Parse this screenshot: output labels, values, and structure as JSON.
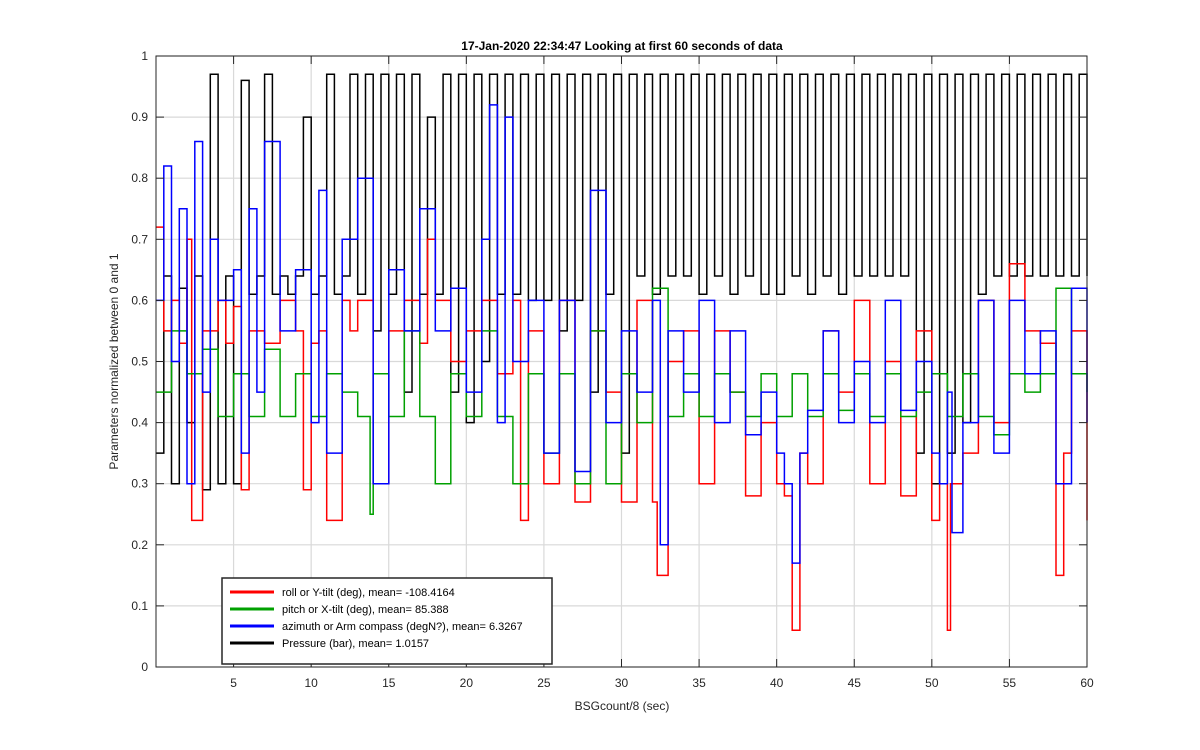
{
  "chart_data": {
    "type": "line",
    "title": "17-Jan-2020 22:34:47 Looking at first 60 seconds of data",
    "xlabel": "BSGcount/8 (sec)",
    "ylabel": "Parameters normalized between 0 and 1",
    "xlim": [
      0,
      60
    ],
    "ylim": [
      0,
      1
    ],
    "xticks": [
      "5",
      "10",
      "15",
      "20",
      "25",
      "30",
      "35",
      "40",
      "45",
      "50",
      "55",
      "60"
    ],
    "yticks": [
      "0",
      "0.1",
      "0.2",
      "0.3",
      "0.4",
      "0.5",
      "0.6",
      "0.7",
      "0.8",
      "0.9",
      "1"
    ],
    "grid": true,
    "legend_position": "bottom-left",
    "series": [
      {
        "name": "roll or Y-tilt (deg), mean= -108.4164",
        "color": "#ff0000",
        "x": [
          0,
          0.5,
          1,
          1.5,
          2,
          2.3,
          3,
          4,
          4.5,
          5,
          5.5,
          6,
          7,
          8,
          9,
          9.5,
          10,
          10.5,
          11,
          12,
          12.5,
          13,
          14,
          15,
          16,
          17,
          17.5,
          18,
          19,
          20,
          21,
          22,
          23,
          23.5,
          24,
          25,
          26,
          27,
          28,
          29,
          30,
          31,
          32,
          32.3,
          33,
          34,
          35,
          36,
          37,
          38,
          39,
          40,
          40.5,
          41,
          41.5,
          42,
          43,
          44,
          45,
          46,
          47,
          48,
          49,
          50,
          50.5,
          51,
          51.2,
          52,
          53,
          54,
          55,
          56,
          57,
          58,
          58.5,
          59,
          60
        ],
        "values": [
          0.72,
          0.55,
          0.6,
          0.53,
          0.7,
          0.24,
          0.55,
          0.6,
          0.53,
          0.59,
          0.29,
          0.55,
          0.53,
          0.6,
          0.55,
          0.29,
          0.53,
          0.55,
          0.24,
          0.6,
          0.55,
          0.6,
          0.3,
          0.55,
          0.6,
          0.53,
          0.7,
          0.6,
          0.5,
          0.55,
          0.6,
          0.48,
          0.6,
          0.24,
          0.55,
          0.3,
          0.6,
          0.27,
          0.55,
          0.45,
          0.27,
          0.6,
          0.27,
          0.15,
          0.5,
          0.55,
          0.3,
          0.55,
          0.45,
          0.28,
          0.4,
          0.3,
          0.28,
          0.06,
          0.35,
          0.3,
          0.55,
          0.45,
          0.6,
          0.3,
          0.5,
          0.28,
          0.55,
          0.24,
          0.3,
          0.06,
          0.3,
          0.35,
          0.6,
          0.4,
          0.66,
          0.55,
          0.53,
          0.15,
          0.35,
          0.55,
          0.24
        ]
      },
      {
        "name": "pitch or X-tilt (deg), mean= 85.388",
        "color": "#00a000",
        "x": [
          0,
          1,
          2,
          3,
          4,
          5,
          6,
          7,
          8,
          9,
          10,
          11,
          12,
          13,
          13.8,
          14,
          15,
          16,
          17,
          18,
          19,
          20,
          21,
          22,
          23,
          24,
          25,
          26,
          27,
          28,
          29,
          30,
          31,
          32,
          33,
          34,
          35,
          36,
          37,
          38,
          39,
          40,
          41,
          42,
          43,
          44,
          45,
          46,
          47,
          48,
          49,
          50,
          51,
          52,
          53,
          54,
          55,
          56,
          57,
          58,
          59,
          60
        ],
        "values": [
          0.45,
          0.55,
          0.48,
          0.52,
          0.41,
          0.48,
          0.41,
          0.52,
          0.41,
          0.48,
          0.41,
          0.48,
          0.45,
          0.41,
          0.25,
          0.48,
          0.41,
          0.55,
          0.41,
          0.3,
          0.48,
          0.41,
          0.55,
          0.41,
          0.3,
          0.48,
          0.35,
          0.48,
          0.3,
          0.55,
          0.3,
          0.48,
          0.4,
          0.62,
          0.41,
          0.48,
          0.41,
          0.48,
          0.45,
          0.41,
          0.48,
          0.41,
          0.48,
          0.41,
          0.48,
          0.42,
          0.48,
          0.41,
          0.48,
          0.41,
          0.45,
          0.48,
          0.41,
          0.48,
          0.41,
          0.38,
          0.48,
          0.45,
          0.48,
          0.62,
          0.48,
          0.45
        ]
      },
      {
        "name": "azimuth or Arm compass (degN?), mean= 6.3267",
        "color": "#0000ff",
        "x": [
          0,
          0.5,
          1,
          1.5,
          2,
          2.5,
          3,
          3.5,
          4,
          5,
          5.5,
          6,
          6.5,
          7,
          8,
          9,
          10,
          10.5,
          11,
          12,
          13,
          14,
          15,
          16,
          17,
          18,
          19,
          20,
          21,
          21.5,
          22,
          22.5,
          23,
          24,
          25,
          26,
          27,
          28,
          29,
          30,
          31,
          32,
          32.5,
          33,
          34,
          35,
          36,
          37,
          38,
          39,
          40,
          40.5,
          41,
          41.5,
          42,
          43,
          44,
          45,
          46,
          47,
          48,
          49,
          50,
          50.5,
          51,
          51.3,
          52,
          53,
          54,
          55,
          56,
          57,
          58,
          59,
          60
        ],
        "values": [
          0.6,
          0.82,
          0.5,
          0.75,
          0.3,
          0.86,
          0.45,
          0.7,
          0.6,
          0.65,
          0.35,
          0.75,
          0.45,
          0.86,
          0.55,
          0.65,
          0.4,
          0.78,
          0.35,
          0.7,
          0.8,
          0.3,
          0.65,
          0.55,
          0.75,
          0.55,
          0.62,
          0.45,
          0.7,
          0.92,
          0.4,
          0.9,
          0.5,
          0.6,
          0.35,
          0.6,
          0.32,
          0.78,
          0.4,
          0.55,
          0.45,
          0.6,
          0.2,
          0.55,
          0.45,
          0.6,
          0.4,
          0.55,
          0.38,
          0.45,
          0.35,
          0.3,
          0.17,
          0.35,
          0.42,
          0.55,
          0.4,
          0.5,
          0.4,
          0.6,
          0.42,
          0.5,
          0.35,
          0.3,
          0.45,
          0.22,
          0.4,
          0.6,
          0.35,
          0.6,
          0.48,
          0.55,
          0.3,
          0.62,
          0.4
        ]
      },
      {
        "name": "Pressure (bar), mean= 1.0157",
        "color": "#000000",
        "x": [
          0,
          0.5,
          1,
          1.5,
          2,
          2.5,
          3,
          3.5,
          4,
          4.5,
          5,
          5.5,
          6,
          6.5,
          7,
          7.5,
          8,
          8.5,
          9,
          9.5,
          10,
          10.5,
          11,
          11.5,
          12,
          12.5,
          13,
          13.5,
          14,
          14.5,
          15,
          15.5,
          16,
          16.5,
          17,
          17.5,
          18,
          18.5,
          19,
          19.5,
          20,
          20.5,
          21,
          21.5,
          22,
          22.5,
          23,
          23.5,
          24,
          24.5,
          25,
          25.5,
          26,
          26.5,
          27,
          27.5,
          28,
          28.5,
          29,
          29.5,
          30,
          30.5,
          31,
          31.5,
          32,
          32.5,
          33,
          33.5,
          34,
          34.5,
          35,
          35.5,
          36,
          36.5,
          37,
          37.5,
          38,
          38.5,
          39,
          39.5,
          40,
          40.5,
          41,
          41.5,
          42,
          42.5,
          43,
          43.5,
          44,
          44.5,
          45,
          45.5,
          46,
          46.5,
          47,
          47.5,
          48,
          48.5,
          49,
          49.5,
          50,
          50.5,
          51,
          51.5,
          52,
          52.5,
          53,
          53.5,
          54,
          54.5,
          55,
          55.5,
          56,
          56.5,
          57,
          57.5,
          58,
          58.5,
          59,
          59.5,
          60
        ],
        "values": [
          0.35,
          0.64,
          0.3,
          0.62,
          0.4,
          0.64,
          0.29,
          0.97,
          0.3,
          0.64,
          0.3,
          0.96,
          0.61,
          0.64,
          0.97,
          0.61,
          0.64,
          0.61,
          0.64,
          0.9,
          0.61,
          0.64,
          0.97,
          0.61,
          0.64,
          0.97,
          0.61,
          0.97,
          0.55,
          0.97,
          0.61,
          0.97,
          0.45,
          0.97,
          0.61,
          0.9,
          0.61,
          0.97,
          0.45,
          0.97,
          0.4,
          0.97,
          0.5,
          0.97,
          0.61,
          0.97,
          0.61,
          0.97,
          0.6,
          0.97,
          0.6,
          0.97,
          0.55,
          0.97,
          0.6,
          0.97,
          0.45,
          0.97,
          0.61,
          0.97,
          0.35,
          0.97,
          0.64,
          0.97,
          0.61,
          0.97,
          0.64,
          0.97,
          0.64,
          0.97,
          0.61,
          0.97,
          0.64,
          0.97,
          0.61,
          0.97,
          0.64,
          0.97,
          0.61,
          0.97,
          0.61,
          0.97,
          0.64,
          0.97,
          0.61,
          0.97,
          0.64,
          0.97,
          0.61,
          0.97,
          0.64,
          0.97,
          0.64,
          0.97,
          0.64,
          0.97,
          0.64,
          0.97,
          0.35,
          0.97,
          0.3,
          0.97,
          0.35,
          0.97,
          0.4,
          0.97,
          0.61,
          0.97,
          0.64,
          0.97,
          0.64,
          0.97,
          0.64,
          0.97,
          0.64,
          0.97,
          0.64,
          0.97,
          0.64,
          0.97,
          0.64
        ]
      }
    ]
  }
}
